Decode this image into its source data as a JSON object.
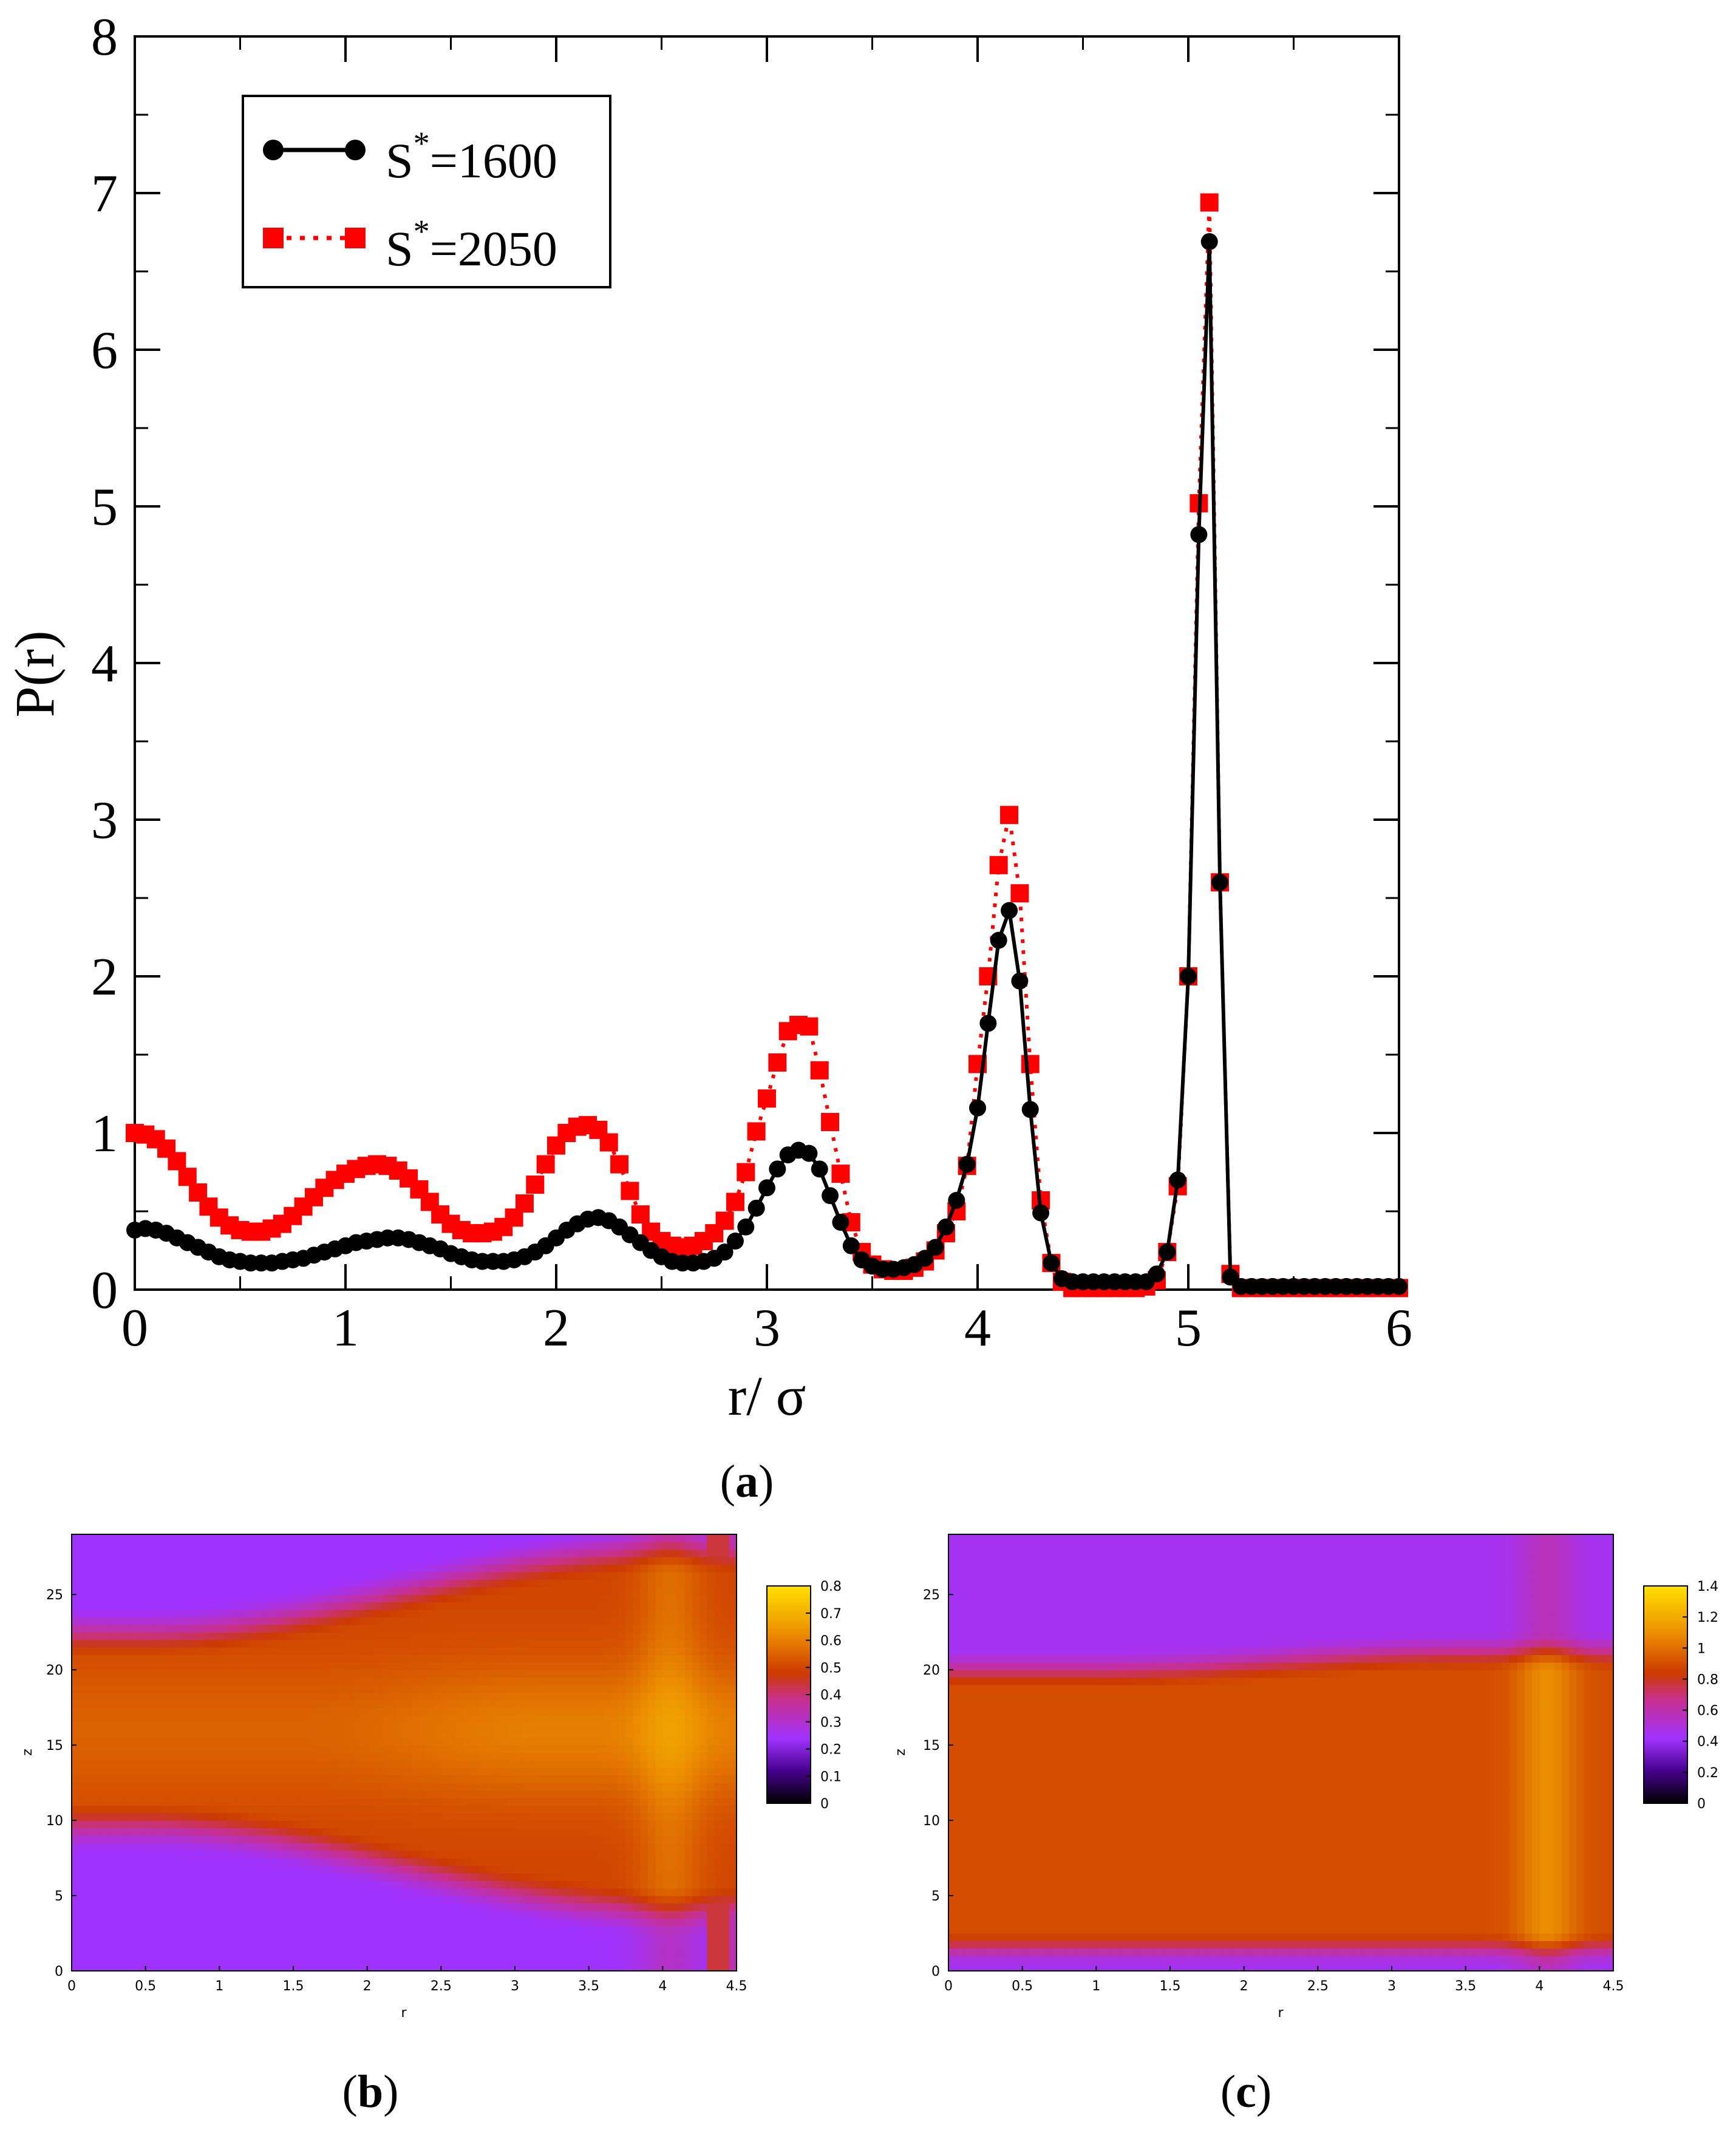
{
  "colors": {
    "series1": "#000000",
    "series2": "#ff0000",
    "heat_low": "#a030ff",
    "heat_mid": "#cc3a00",
    "heat_high": "#ffd400"
  },
  "panels": {
    "a": {
      "caption": "a"
    },
    "b": {
      "caption": "b"
    },
    "c": {
      "caption": "c"
    }
  },
  "chart_data": [
    {
      "panel": "a",
      "type": "line",
      "title": "",
      "xlabel": "r/ σ",
      "ylabel": "P(r)",
      "xlim": [
        0,
        6
      ],
      "ylim": [
        0,
        8
      ],
      "xticks": [
        0,
        1,
        2,
        3,
        4,
        5,
        6
      ],
      "yticks": [
        0,
        1,
        2,
        3,
        4,
        5,
        6,
        7,
        8
      ],
      "legend": {
        "position": "top-left",
        "entries": [
          {
            "prefix": "S",
            "sup": "*",
            "suffix": "=1600"
          },
          {
            "prefix": "S",
            "sup": "*",
            "suffix": "=2050"
          }
        ]
      },
      "series": [
        {
          "name": "S*=1600",
          "style": "solid line, circle markers",
          "x": [
            0.0,
            0.05,
            0.1,
            0.15,
            0.2,
            0.25,
            0.3,
            0.35,
            0.4,
            0.45,
            0.5,
            0.55,
            0.6,
            0.65,
            0.7,
            0.75,
            0.8,
            0.85,
            0.9,
            0.95,
            1.0,
            1.05,
            1.1,
            1.15,
            1.2,
            1.25,
            1.3,
            1.35,
            1.4,
            1.45,
            1.5,
            1.55,
            1.6,
            1.65,
            1.7,
            1.75,
            1.8,
            1.85,
            1.9,
            1.95,
            2.0,
            2.05,
            2.1,
            2.15,
            2.2,
            2.25,
            2.3,
            2.35,
            2.4,
            2.45,
            2.5,
            2.55,
            2.6,
            2.65,
            2.7,
            2.75,
            2.8,
            2.85,
            2.9,
            2.95,
            3.0,
            3.05,
            3.1,
            3.15,
            3.2,
            3.25,
            3.3,
            3.35,
            3.4,
            3.45,
            3.5,
            3.55,
            3.6,
            3.65,
            3.7,
            3.75,
            3.8,
            3.85,
            3.9,
            3.95,
            4.0,
            4.05,
            4.1,
            4.15,
            4.2,
            4.25,
            4.3,
            4.35,
            4.4,
            4.45,
            4.5,
            4.55,
            4.6,
            4.65,
            4.7,
            4.75,
            4.8,
            4.85,
            4.9,
            4.95,
            5.0,
            5.05,
            5.1,
            5.15,
            5.2,
            5.25,
            5.3,
            5.35,
            5.4,
            5.45,
            5.5,
            5.55,
            5.6,
            5.65,
            5.7,
            5.75,
            5.8,
            5.85,
            5.9,
            5.95,
            6.0
          ],
          "y": [
            0.38,
            0.39,
            0.38,
            0.36,
            0.33,
            0.3,
            0.27,
            0.24,
            0.21,
            0.19,
            0.18,
            0.17,
            0.17,
            0.17,
            0.18,
            0.19,
            0.2,
            0.22,
            0.24,
            0.26,
            0.28,
            0.3,
            0.31,
            0.32,
            0.33,
            0.33,
            0.32,
            0.3,
            0.28,
            0.26,
            0.23,
            0.21,
            0.19,
            0.18,
            0.18,
            0.18,
            0.19,
            0.21,
            0.24,
            0.28,
            0.33,
            0.38,
            0.42,
            0.45,
            0.46,
            0.44,
            0.4,
            0.35,
            0.3,
            0.25,
            0.21,
            0.18,
            0.17,
            0.17,
            0.18,
            0.2,
            0.24,
            0.31,
            0.4,
            0.52,
            0.65,
            0.77,
            0.86,
            0.89,
            0.87,
            0.77,
            0.6,
            0.43,
            0.28,
            0.19,
            0.15,
            0.13,
            0.13,
            0.14,
            0.16,
            0.2,
            0.27,
            0.4,
            0.57,
            0.8,
            1.16,
            1.7,
            2.23,
            2.42,
            1.97,
            1.15,
            0.49,
            0.17,
            0.07,
            0.05,
            0.05,
            0.05,
            0.05,
            0.05,
            0.05,
            0.05,
            0.05,
            0.1,
            0.24,
            0.7,
            2.0,
            4.82,
            6.69,
            2.6,
            0.08,
            0.02,
            0.02,
            0.02,
            0.02,
            0.02,
            0.02,
            0.02,
            0.02,
            0.02,
            0.02,
            0.02,
            0.02,
            0.02,
            0.02,
            0.02,
            0.02
          ]
        },
        {
          "name": "S*=2050",
          "style": "dotted line, square markers",
          "x": [
            0.0,
            0.05,
            0.1,
            0.15,
            0.2,
            0.25,
            0.3,
            0.35,
            0.4,
            0.45,
            0.5,
            0.55,
            0.6,
            0.65,
            0.7,
            0.75,
            0.8,
            0.85,
            0.9,
            0.95,
            1.0,
            1.05,
            1.1,
            1.15,
            1.2,
            1.25,
            1.3,
            1.35,
            1.4,
            1.45,
            1.5,
            1.55,
            1.6,
            1.65,
            1.7,
            1.75,
            1.8,
            1.85,
            1.9,
            1.95,
            2.0,
            2.05,
            2.1,
            2.15,
            2.2,
            2.25,
            2.3,
            2.35,
            2.4,
            2.45,
            2.5,
            2.55,
            2.6,
            2.65,
            2.7,
            2.75,
            2.8,
            2.85,
            2.9,
            2.95,
            3.0,
            3.05,
            3.1,
            3.15,
            3.2,
            3.25,
            3.3,
            3.35,
            3.4,
            3.45,
            3.5,
            3.55,
            3.6,
            3.65,
            3.7,
            3.75,
            3.8,
            3.85,
            3.9,
            3.95,
            4.0,
            4.05,
            4.1,
            4.15,
            4.2,
            4.25,
            4.3,
            4.35,
            4.4,
            4.45,
            4.5,
            4.55,
            4.6,
            4.65,
            4.7,
            4.75,
            4.8,
            4.85,
            4.9,
            4.95,
            5.0,
            5.05,
            5.1,
            5.15,
            5.2,
            5.25,
            5.3,
            5.35,
            5.4,
            5.45,
            5.5,
            5.55,
            5.6,
            5.65,
            5.7,
            5.75,
            5.8,
            5.85,
            5.9,
            5.95,
            6.0
          ],
          "y": [
            1.0,
            0.99,
            0.96,
            0.9,
            0.82,
            0.72,
            0.62,
            0.53,
            0.46,
            0.41,
            0.38,
            0.37,
            0.37,
            0.39,
            0.42,
            0.47,
            0.53,
            0.59,
            0.65,
            0.7,
            0.74,
            0.77,
            0.79,
            0.8,
            0.79,
            0.76,
            0.71,
            0.64,
            0.56,
            0.48,
            0.42,
            0.38,
            0.36,
            0.36,
            0.37,
            0.4,
            0.46,
            0.55,
            0.67,
            0.8,
            0.92,
            1.0,
            1.04,
            1.05,
            1.02,
            0.94,
            0.8,
            0.63,
            0.48,
            0.37,
            0.31,
            0.28,
            0.27,
            0.28,
            0.31,
            0.36,
            0.44,
            0.56,
            0.75,
            1.01,
            1.22,
            1.45,
            1.65,
            1.69,
            1.68,
            1.4,
            1.07,
            0.74,
            0.43,
            0.24,
            0.16,
            0.13,
            0.12,
            0.12,
            0.14,
            0.18,
            0.25,
            0.36,
            0.5,
            0.79,
            1.44,
            2.0,
            2.71,
            3.03,
            2.53,
            1.44,
            0.57,
            0.17,
            0.05,
            0.01,
            0.01,
            0.01,
            0.01,
            0.01,
            0.01,
            0.01,
            0.02,
            0.06,
            0.24,
            0.66,
            2.0,
            5.02,
            6.94,
            2.6,
            0.1,
            0.01,
            0.01,
            0.01,
            0.01,
            0.01,
            0.01,
            0.01,
            0.01,
            0.01,
            0.01,
            0.01,
            0.01,
            0.01,
            0.01,
            0.01,
            0.01
          ]
        }
      ]
    },
    {
      "panel": "b",
      "type": "heatmap",
      "xlabel": "r",
      "ylabel": "z",
      "xlim": [
        0,
        4.5
      ],
      "ylim": [
        0,
        29
      ],
      "xticks": [
        "0",
        "0.5",
        "1",
        "1.5",
        "2",
        "2.5",
        "3",
        "3.5",
        "4",
        "4.5"
      ],
      "yticks": [
        "0",
        "5",
        "10",
        "15",
        "20",
        "25"
      ],
      "colorbar": {
        "min": 0,
        "max": 0.8,
        "ticks": [
          "0",
          "0.1",
          "0.2",
          "0.3",
          "0.4",
          "0.5",
          "0.6",
          "0.7",
          "0.8"
        ]
      },
      "description_values": {
        "band_center_z": 16,
        "band_half_width_at_r0": 6.5,
        "band_half_width_at_r4": 12.0,
        "outer_value": 0.24,
        "band_value": 0.5,
        "band_peak_value": 0.6
      }
    },
    {
      "panel": "c",
      "type": "heatmap",
      "xlabel": "r",
      "ylabel": "z",
      "xlim": [
        0,
        4.5
      ],
      "ylim": [
        0,
        29
      ],
      "xticks": [
        "0",
        "0.5",
        "1",
        "1.5",
        "2",
        "2.5",
        "3",
        "3.5",
        "4",
        "4.5"
      ],
      "yticks": [
        "0",
        "5",
        "10",
        "15",
        "20",
        "25"
      ],
      "colorbar": {
        "min": 0,
        "max": 1.4,
        "ticks": [
          "0",
          "0.2",
          "0.4",
          "0.6",
          "0.8",
          "1",
          "1.2",
          "1.4"
        ]
      },
      "description_values": {
        "band_low_z": 1.5,
        "band_high_z": 20,
        "outer_value": 0.45,
        "band_value": 0.9,
        "band_peak_value": 1.1
      }
    }
  ]
}
